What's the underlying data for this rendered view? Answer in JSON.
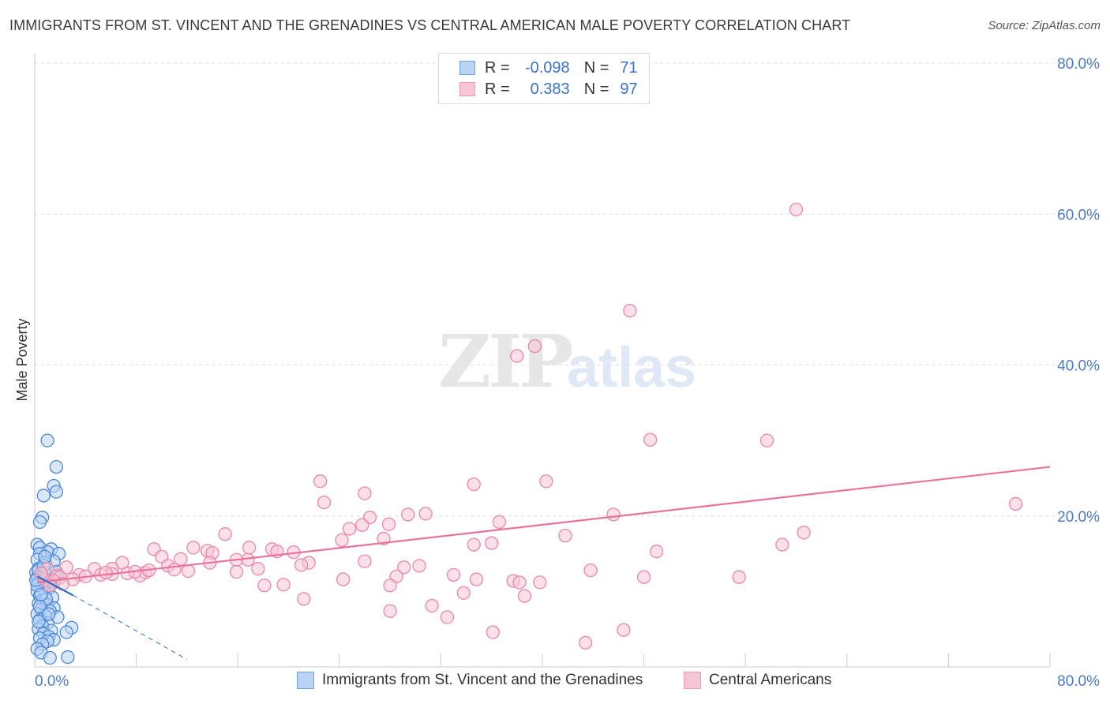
{
  "title": "IMMIGRANTS FROM ST. VINCENT AND THE GRENADINES VS CENTRAL AMERICAN MALE POVERTY CORRELATION CHART",
  "source": "Source: ZipAtlas.com",
  "watermark": {
    "zip": "ZIP",
    "atlas": "atlas"
  },
  "legend": {
    "rows": [
      {
        "r_label": "R =",
        "r_value": "-0.098",
        "n_label": "N =",
        "n_value": "71",
        "color": "#6fa3e6"
      },
      {
        "r_label": "R =",
        "r_value": "0.383",
        "n_label": "N =",
        "n_value": "97",
        "color": "#f29bb5"
      }
    ]
  },
  "bottom_legend": [
    {
      "label": "Immigrants from St. Vincent and the Grenadines",
      "color": "#6fa3e6"
    },
    {
      "label": "Central Americans",
      "color": "#f29bb5"
    }
  ],
  "colors": {
    "blue_fill": "#b8d3f5",
    "blue_stroke": "#4c88d6",
    "pink_fill": "#f7c6d5",
    "pink_stroke": "#e887a8",
    "blue_line": "#2f6dcc",
    "pink_line": "#e8739a",
    "axis_text": "#4a7cc9"
  },
  "chart_data": {
    "type": "scatter",
    "title": "IMMIGRANTS FROM ST. VINCENT AND THE GRENADINES VS CENTRAL AMERICAN MALE POVERTY CORRELATION CHART",
    "xlabel": "",
    "ylabel": "Male Poverty",
    "xlim": [
      0,
      80
    ],
    "ylim": [
      0,
      80
    ],
    "x_tick_labels": [
      "0.0%",
      "80.0%"
    ],
    "y_tick_labels": [
      "20.0%",
      "40.0%",
      "60.0%",
      "80.0%"
    ],
    "y_ticks": [
      20,
      40,
      60,
      80
    ],
    "grid": true,
    "series": [
      {
        "name": "Immigrants from St. Vincent and the Grenadines",
        "color": "#6fa3e6",
        "r": -0.098,
        "n": 71,
        "trend": [
          [
            0.2,
            12.0
          ],
          [
            3.0,
            9.5
          ]
        ],
        "trend_dashed": [
          [
            3.0,
            9.5
          ],
          [
            12.0,
            1.0
          ]
        ],
        "points": [
          [
            1.0,
            30.0
          ],
          [
            1.7,
            26.5
          ],
          [
            1.5,
            24.0
          ],
          [
            1.7,
            23.2
          ],
          [
            0.7,
            22.7
          ],
          [
            0.6,
            19.8
          ],
          [
            0.4,
            19.2
          ],
          [
            0.2,
            16.2
          ],
          [
            0.4,
            15.8
          ],
          [
            1.3,
            15.6
          ],
          [
            1.0,
            15.2
          ],
          [
            0.4,
            15.0
          ],
          [
            1.9,
            15.0
          ],
          [
            0.2,
            14.2
          ],
          [
            1.5,
            14.0
          ],
          [
            0.8,
            13.8
          ],
          [
            0.3,
            13.0
          ],
          [
            0.1,
            12.5
          ],
          [
            0.5,
            12.2
          ],
          [
            0.9,
            12.4
          ],
          [
            0.2,
            11.8
          ],
          [
            0.7,
            11.6
          ],
          [
            1.2,
            11.4
          ],
          [
            0.3,
            11.2
          ],
          [
            0.9,
            11.0
          ],
          [
            1.5,
            11.2
          ],
          [
            0.5,
            10.6
          ],
          [
            1.1,
            10.4
          ],
          [
            0.2,
            10.0
          ],
          [
            0.8,
            9.8
          ],
          [
            0.4,
            9.4
          ],
          [
            1.4,
            9.2
          ],
          [
            0.6,
            8.8
          ],
          [
            0.3,
            8.4
          ],
          [
            1.0,
            8.2
          ],
          [
            1.5,
            7.8
          ],
          [
            0.5,
            7.6
          ],
          [
            1.2,
            7.4
          ],
          [
            0.2,
            7.0
          ],
          [
            0.8,
            6.8
          ],
          [
            1.8,
            6.6
          ],
          [
            0.4,
            6.2
          ],
          [
            1.0,
            5.8
          ],
          [
            0.6,
            5.4
          ],
          [
            2.9,
            5.2
          ],
          [
            0.3,
            5.0
          ],
          [
            1.3,
            4.8
          ],
          [
            2.5,
            4.6
          ],
          [
            0.7,
            4.4
          ],
          [
            1.1,
            4.0
          ],
          [
            0.4,
            3.8
          ],
          [
            1.5,
            3.6
          ],
          [
            1.0,
            3.4
          ],
          [
            0.6,
            3.0
          ],
          [
            0.2,
            2.4
          ],
          [
            0.5,
            1.9
          ],
          [
            1.2,
            1.2
          ],
          [
            2.6,
            1.3
          ],
          [
            0.3,
            12.8
          ],
          [
            0.6,
            12.0
          ],
          [
            1.6,
            11.9
          ],
          [
            0.2,
            10.8
          ],
          [
            0.9,
            9.0
          ],
          [
            0.4,
            8.0
          ],
          [
            1.7,
            12.6
          ],
          [
            0.7,
            13.4
          ],
          [
            0.1,
            11.5
          ],
          [
            0.5,
            9.6
          ],
          [
            1.1,
            7.0
          ],
          [
            0.3,
            6.0
          ],
          [
            0.8,
            14.6
          ]
        ]
      },
      {
        "name": "Central Americans",
        "color": "#f29bb5",
        "r": 0.383,
        "n": 97,
        "trend": [
          [
            0.2,
            11.2
          ],
          [
            80.0,
            26.5
          ]
        ],
        "points": [
          [
            60.0,
            60.6
          ],
          [
            46.9,
            47.2
          ],
          [
            39.4,
            42.5
          ],
          [
            38.0,
            41.2
          ],
          [
            48.5,
            30.1
          ],
          [
            57.7,
            30.0
          ],
          [
            22.5,
            24.6
          ],
          [
            40.3,
            24.6
          ],
          [
            34.6,
            24.2
          ],
          [
            26.0,
            23.0
          ],
          [
            22.8,
            21.8
          ],
          [
            77.3,
            21.6
          ],
          [
            30.8,
            20.3
          ],
          [
            45.6,
            20.2
          ],
          [
            29.4,
            20.2
          ],
          [
            26.4,
            19.8
          ],
          [
            36.6,
            19.2
          ],
          [
            25.8,
            18.8
          ],
          [
            27.9,
            18.9
          ],
          [
            24.8,
            18.3
          ],
          [
            15.0,
            17.6
          ],
          [
            60.6,
            17.8
          ],
          [
            41.8,
            17.4
          ],
          [
            27.5,
            17.0
          ],
          [
            24.2,
            16.8
          ],
          [
            36.0,
            16.4
          ],
          [
            34.6,
            16.2
          ],
          [
            58.9,
            16.2
          ],
          [
            16.9,
            15.8
          ],
          [
            12.5,
            15.8
          ],
          [
            18.7,
            15.6
          ],
          [
            9.4,
            15.6
          ],
          [
            13.6,
            15.4
          ],
          [
            14.0,
            15.1
          ],
          [
            49.0,
            15.3
          ],
          [
            19.1,
            15.3
          ],
          [
            20.4,
            15.2
          ],
          [
            10.0,
            14.6
          ],
          [
            11.5,
            14.3
          ],
          [
            15.9,
            14.2
          ],
          [
            16.8,
            14.2
          ],
          [
            26.0,
            14.0
          ],
          [
            6.9,
            13.8
          ],
          [
            13.8,
            13.8
          ],
          [
            21.6,
            13.8
          ],
          [
            21.0,
            13.5
          ],
          [
            30.3,
            13.4
          ],
          [
            10.5,
            13.4
          ],
          [
            2.5,
            13.2
          ],
          [
            29.1,
            13.2
          ],
          [
            1.0,
            13.0
          ],
          [
            4.7,
            13.0
          ],
          [
            6.1,
            13.0
          ],
          [
            17.6,
            13.0
          ],
          [
            11.0,
            12.9
          ],
          [
            43.8,
            12.8
          ],
          [
            12.1,
            12.7
          ],
          [
            8.7,
            12.5
          ],
          [
            7.3,
            12.4
          ],
          [
            6.1,
            12.3
          ],
          [
            15.9,
            12.6
          ],
          [
            3.5,
            12.2
          ],
          [
            5.2,
            12.2
          ],
          [
            1.8,
            12.1
          ],
          [
            8.3,
            12.1
          ],
          [
            4.0,
            12.0
          ],
          [
            33.0,
            12.2
          ],
          [
            28.5,
            12.0
          ],
          [
            2.0,
            11.9
          ],
          [
            0.8,
            11.6
          ],
          [
            1.5,
            11.4
          ],
          [
            3.0,
            11.6
          ],
          [
            24.3,
            11.6
          ],
          [
            34.8,
            11.6
          ],
          [
            37.7,
            11.4
          ],
          [
            48.0,
            11.9
          ],
          [
            55.5,
            11.9
          ],
          [
            39.8,
            11.2
          ],
          [
            38.2,
            11.2
          ],
          [
            18.1,
            10.8
          ],
          [
            28.0,
            10.8
          ],
          [
            19.6,
            10.9
          ],
          [
            1.2,
            10.8
          ],
          [
            33.8,
            9.8
          ],
          [
            38.6,
            9.4
          ],
          [
            21.2,
            9.0
          ],
          [
            31.3,
            8.1
          ],
          [
            28.0,
            7.4
          ],
          [
            32.5,
            6.6
          ],
          [
            36.1,
            4.6
          ],
          [
            46.4,
            4.9
          ],
          [
            43.4,
            3.2
          ],
          [
            0.5,
            12.4
          ],
          [
            2.2,
            11.0
          ],
          [
            9.0,
            12.8
          ],
          [
            7.9,
            12.6
          ],
          [
            5.6,
            12.5
          ]
        ]
      }
    ]
  }
}
